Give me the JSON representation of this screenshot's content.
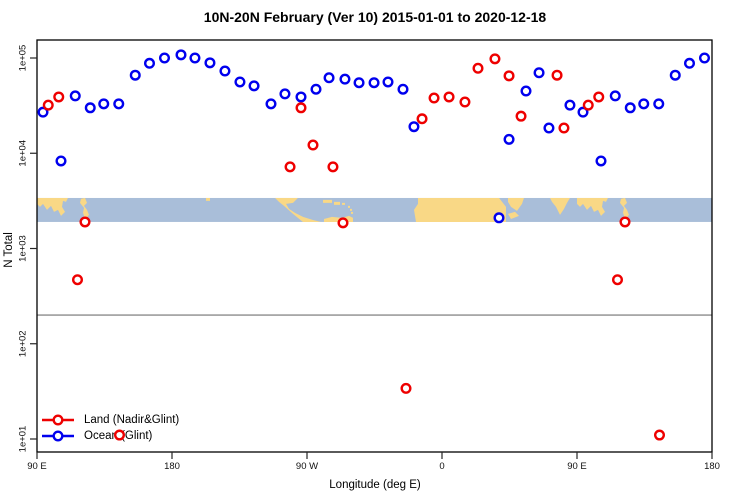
{
  "title": "10N-20N February (Ver 10)   2015-01-01 to 2020-12-18",
  "chart_data": {
    "type": "scatter",
    "title": "10N-20N February (Ver 10)   2015-01-01 to 2020-12-18",
    "xlabel": "Longitude (deg E)",
    "ylabel": "N Total",
    "x_axis": {
      "start_lon_deg_e": 90,
      "span_deg": 450,
      "ticks": [
        {
          "label": "90 E",
          "axis_deg": 0
        },
        {
          "label": "180",
          "axis_deg": 90
        },
        {
          "label": "90 W",
          "axis_deg": 180
        },
        {
          "label": "0",
          "axis_deg": 270
        },
        {
          "label": "90 E",
          "axis_deg": 360
        },
        {
          "label": "180",
          "axis_deg": 450
        }
      ]
    },
    "y_axis": {
      "scale": "log10",
      "range": [
        10,
        100000
      ],
      "ticks": [
        {
          "label": "1e+01",
          "value": 10
        },
        {
          "label": "1e+02",
          "value": 100
        },
        {
          "label": "1e+03",
          "value": 1000
        },
        {
          "label": "1e+04",
          "value": 10000
        },
        {
          "label": "1e+05",
          "value": 100000
        }
      ]
    },
    "reference_line": {
      "value": 200,
      "color": "#8c8c8c"
    },
    "map_strip": {
      "ocean_color": "#a9bed9",
      "land_color": "#f9d886",
      "value_top": 3400,
      "value_bottom": 1900
    },
    "series": [
      {
        "name": "Ocean (Glint)",
        "color": "#0000ee",
        "points": [
          [
            94,
            27000
          ],
          [
            115.5,
            40000
          ],
          [
            125.5,
            30000
          ],
          [
            134.5,
            33000
          ],
          [
            144.5,
            33000
          ],
          [
            155.5,
            66000
          ],
          [
            165,
            88000
          ],
          [
            175,
            100000
          ],
          [
            -174,
            108000
          ],
          [
            -164.7,
            100000
          ],
          [
            -154.7,
            89000
          ],
          [
            -144.7,
            73000
          ],
          [
            -134.7,
            56000
          ],
          [
            -125.3,
            51000
          ],
          [
            -114,
            33000
          ],
          [
            -104.7,
            42000
          ],
          [
            -94,
            39000
          ],
          [
            -84,
            47000
          ],
          [
            -75.3,
            62000
          ],
          [
            -64.7,
            60000
          ],
          [
            -55.3,
            55000
          ],
          [
            -45.3,
            55000
          ],
          [
            -36,
            56000
          ],
          [
            -26,
            47000
          ],
          [
            -18.7,
            19000
          ],
          [
            38,
            2100
          ],
          [
            44.7,
            14000
          ],
          [
            56,
            45000
          ],
          [
            64.7,
            70000
          ],
          [
            71.3,
            18400
          ],
          [
            85.3,
            32000
          ],
          [
            106,
            8300
          ]
        ]
      },
      {
        "name": "Land (Nadir&Glint)",
        "color": "#ee0000",
        "points": [
          [
            97.5,
            32000
          ],
          [
            104.5,
            39000
          ],
          [
            -94,
            30000
          ],
          [
            -101.3,
            7200
          ],
          [
            -86,
            12200
          ],
          [
            -72.7,
            7200
          ],
          [
            -13.3,
            23000
          ],
          [
            -5.3,
            38000
          ],
          [
            4.7,
            39000
          ],
          [
            15.3,
            34500
          ],
          [
            24,
            78000
          ],
          [
            35.3,
            98000
          ],
          [
            44.7,
            65000
          ],
          [
            52.7,
            24500
          ],
          [
            76.7,
            66000
          ],
          [
            81.3,
            18400
          ],
          [
            122,
            1900
          ],
          [
            -66,
            1860
          ],
          [
            117,
            470
          ],
          [
            -24,
            34
          ],
          [
            145,
            11
          ]
        ]
      }
    ]
  },
  "legend": {
    "items": [
      {
        "label": "Land (Nadir&Glint)",
        "color": "#ee0000"
      },
      {
        "label": "Ocean (Glint)",
        "color": "#0000ee"
      }
    ]
  }
}
